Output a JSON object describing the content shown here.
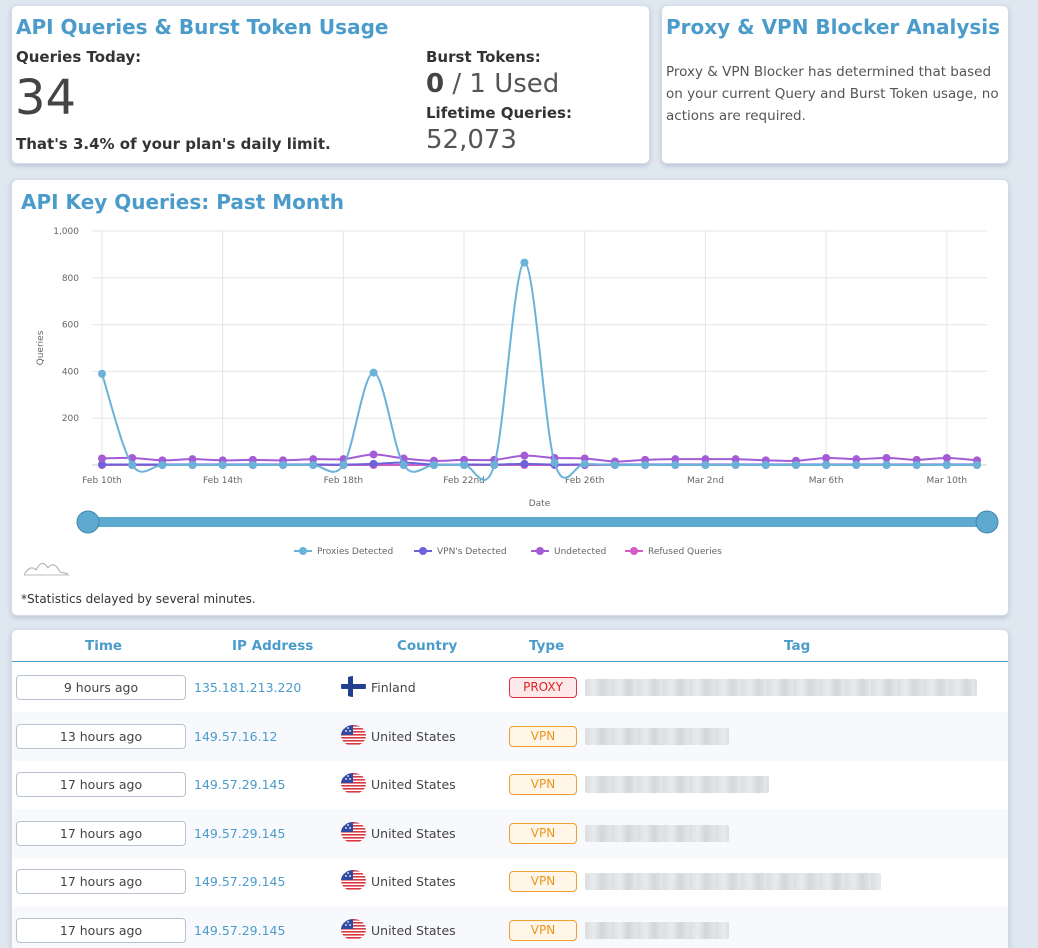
{
  "usage": {
    "title": "API Queries & Burst Token Usage",
    "queries_today_label": "Queries Today:",
    "queries_today": "34",
    "plan_note": "That's 3.4% of your plan's daily limit.",
    "burst_label": "Burst Tokens:",
    "burst_used": "0",
    "burst_rest": " / 1 Used",
    "lifetime_label": "Lifetime Queries:",
    "lifetime_value": "52,073"
  },
  "proxy_analysis": {
    "title": "Proxy & VPN Blocker Analysis",
    "text": "Proxy & VPN Blocker has determined that based on your current Query and Burst Token usage, no actions are required."
  },
  "chart_card": {
    "title": "API Key Queries: Past Month",
    "note": "*Statistics delayed by several minutes."
  },
  "chart_data": {
    "type": "line",
    "xlabel": "Date",
    "ylabel": "Queries",
    "ylim": [
      0,
      1000
    ],
    "yticks": [
      "1,000",
      "800",
      "600",
      "400",
      "200"
    ],
    "grid": true,
    "legend_position": "bottom",
    "x": [
      "Feb 10th",
      "Feb 11th",
      "Feb 12th",
      "Feb 13th",
      "Feb 14th",
      "Feb 15th",
      "Feb 16th",
      "Feb 17th",
      "Feb 18th",
      "Feb 19th",
      "Feb 20th",
      "Feb 21st",
      "Feb 22nd",
      "Feb 23rd",
      "Feb 24th",
      "Feb 25th",
      "Feb 26th",
      "Feb 27th",
      "Feb 28th",
      "Mar 1st",
      "Mar 2nd",
      "Mar 3rd",
      "Mar 4th",
      "Mar 5th",
      "Mar 6th",
      "Mar 7th",
      "Mar 8th",
      "Mar 9th",
      "Mar 10th",
      "Mar 11th"
    ],
    "xtick_labels": [
      "Feb 10th",
      "Feb 14th",
      "Feb 18th",
      "Feb 22nd",
      "Feb 26th",
      "Mar 2nd",
      "Mar 6th",
      "Mar 10th"
    ],
    "series": [
      {
        "name": "Proxies Detected",
        "color": "#6ab2d8",
        "values": [
          390,
          0,
          0,
          0,
          0,
          0,
          0,
          0,
          0,
          395,
          0,
          0,
          0,
          0,
          865,
          10,
          5,
          0,
          0,
          0,
          0,
          0,
          0,
          0,
          0,
          0,
          0,
          0,
          0,
          0
        ]
      },
      {
        "name": "VPN's Detected",
        "color": "#6b63d9",
        "values": [
          2,
          2,
          2,
          2,
          2,
          2,
          2,
          2,
          2,
          5,
          10,
          2,
          2,
          2,
          5,
          2,
          2,
          2,
          2,
          2,
          2,
          2,
          2,
          2,
          2,
          2,
          2,
          2,
          2,
          2
        ]
      },
      {
        "name": "Undetected",
        "color": "#a35cd6",
        "values": [
          28,
          30,
          20,
          25,
          20,
          22,
          20,
          25,
          25,
          45,
          28,
          18,
          22,
          22,
          40,
          30,
          28,
          15,
          22,
          25,
          25,
          25,
          20,
          18,
          30,
          25,
          30,
          22,
          30,
          20
        ]
      },
      {
        "name": "Refused Queries",
        "color": "#d45cc8",
        "values": [
          0,
          0,
          0,
          0,
          0,
          0,
          0,
          0,
          0,
          0,
          0,
          0,
          0,
          0,
          0,
          0,
          0,
          0,
          0,
          0,
          0,
          0,
          0,
          0,
          0,
          0,
          0,
          0,
          0,
          0
        ]
      }
    ]
  },
  "table": {
    "headers": {
      "time": "Time",
      "ip": "IP Address",
      "country": "Country",
      "type": "Type",
      "tag": "Tag"
    },
    "rows": [
      {
        "time": "9 hours ago",
        "ip": "135.181.213.220",
        "country": "Finland",
        "flag": "finland-flag-icon",
        "type": "PROXY",
        "kind": "proxy"
      },
      {
        "time": "13 hours ago",
        "ip": "149.57.16.12",
        "country": "United States",
        "flag": "united-states-flag-icon",
        "type": "VPN",
        "kind": "vpn"
      },
      {
        "time": "17 hours ago",
        "ip": "149.57.29.145",
        "country": "United States",
        "flag": "united-states-flag-icon",
        "type": "VPN",
        "kind": "vpn"
      },
      {
        "time": "17 hours ago",
        "ip": "149.57.29.145",
        "country": "United States",
        "flag": "united-states-flag-icon",
        "type": "VPN",
        "kind": "vpn"
      },
      {
        "time": "17 hours ago",
        "ip": "149.57.29.145",
        "country": "United States",
        "flag": "united-states-flag-icon",
        "type": "VPN",
        "kind": "vpn"
      },
      {
        "time": "17 hours ago",
        "ip": "149.57.29.145",
        "country": "United States",
        "flag": "united-states-flag-icon",
        "type": "VPN",
        "kind": "vpn"
      }
    ]
  }
}
